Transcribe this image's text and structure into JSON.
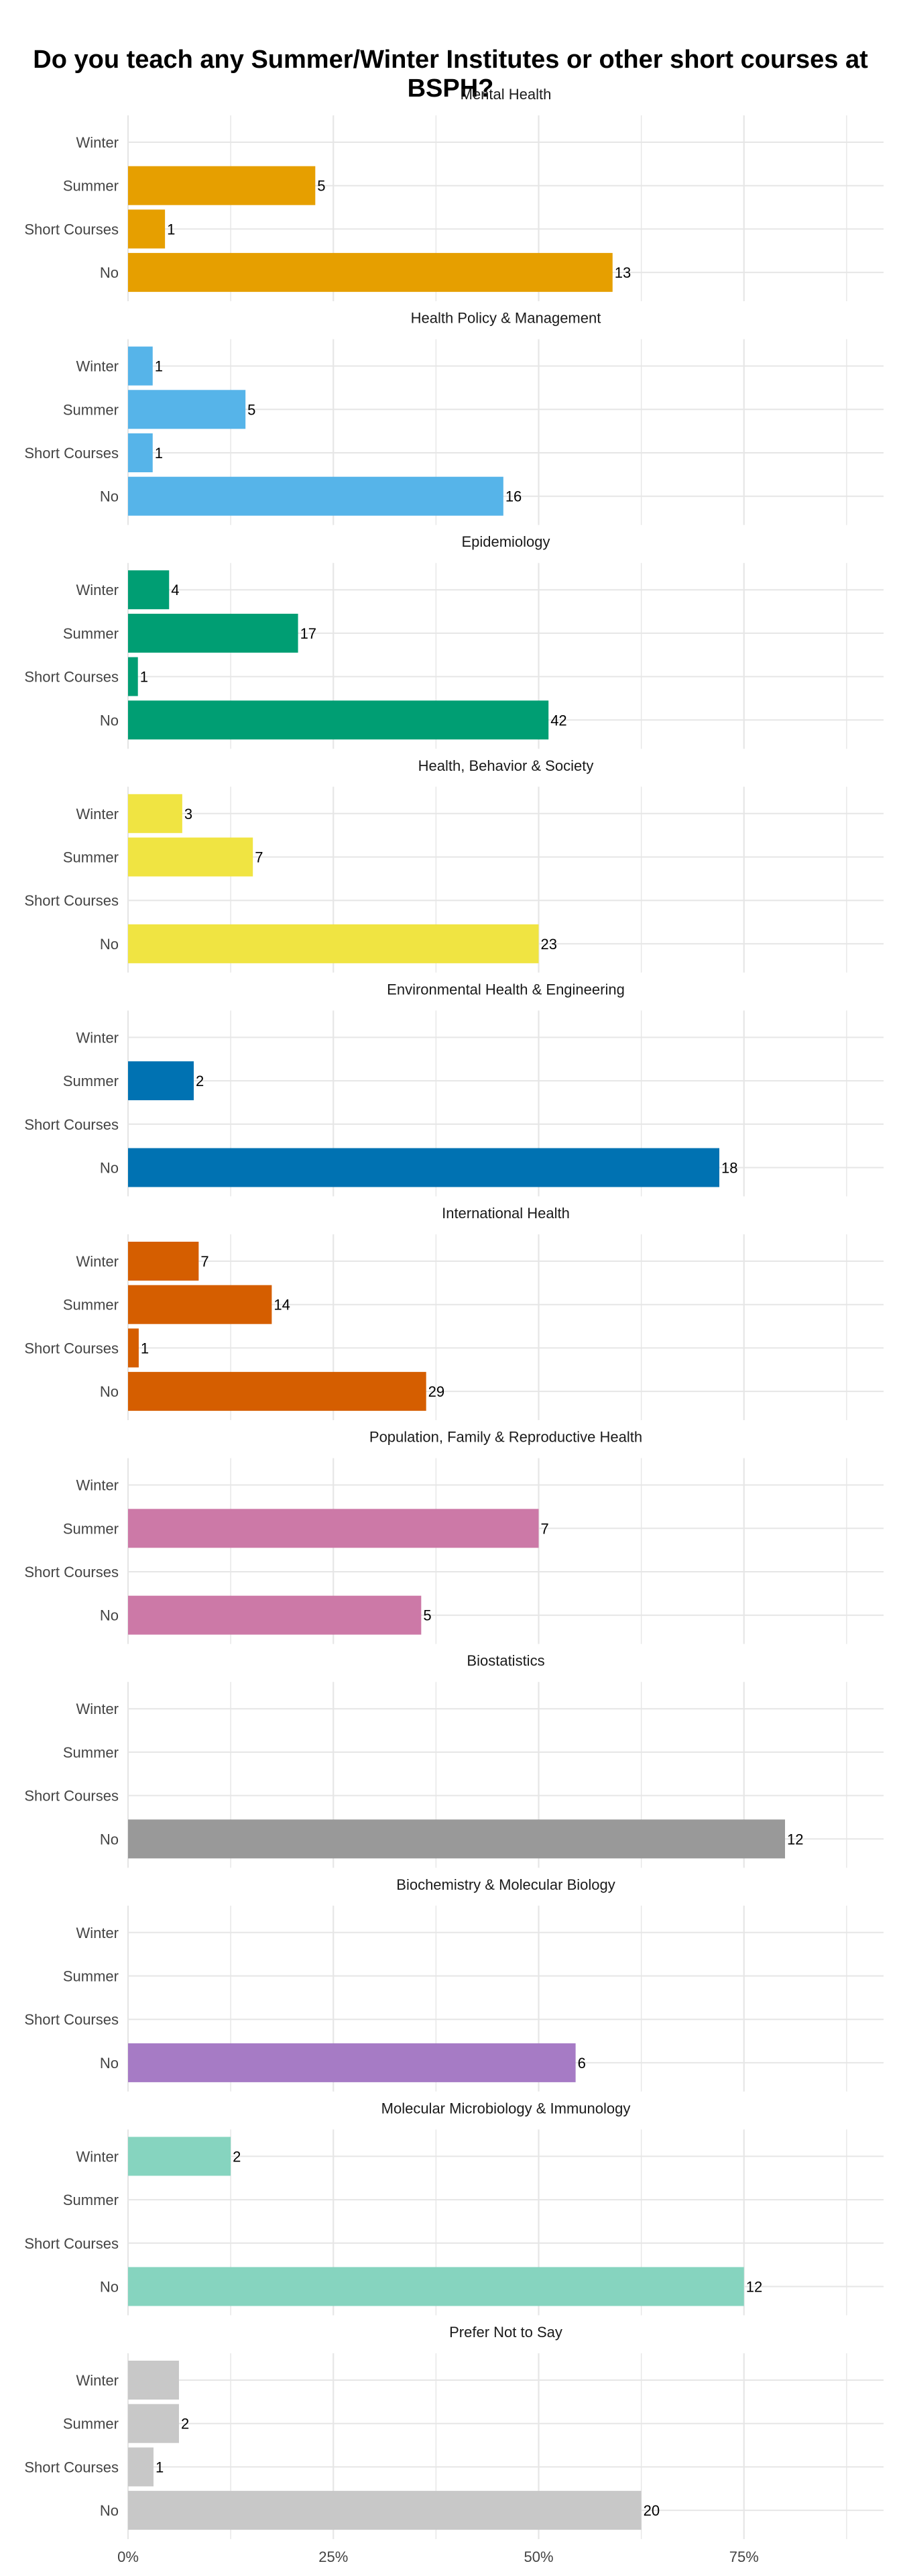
{
  "chart_data": {
    "type": "bar",
    "orientation": "horizontal",
    "title": "Do you teach any Summer/Winter Institutes or other short courses at BSPH?",
    "categories": [
      "Winter",
      "Summer",
      "Short Courses",
      "No"
    ],
    "x_axis": {
      "ticks": [
        0,
        0.25,
        0.5,
        0.75
      ],
      "tick_labels": [
        "0%",
        "25%",
        "50%",
        "75%"
      ],
      "xlim": [
        0,
        0.92
      ]
    },
    "grid": true,
    "panels": [
      {
        "title": "Mental Health",
        "color": "#E69F00",
        "proportions": [
          0,
          0.228,
          0.045,
          0.59
        ],
        "labels": [
          "",
          "5",
          "1",
          "13"
        ]
      },
      {
        "title": "Health Policy & Management",
        "color": "#56B4E9",
        "proportions": [
          0.03,
          0.143,
          0.03,
          0.457
        ],
        "labels": [
          "1",
          "5",
          "1",
          "16"
        ]
      },
      {
        "title": "Epidemiology",
        "color": "#009E73",
        "proportions": [
          0.05,
          0.207,
          0.012,
          0.512
        ],
        "labels": [
          "4",
          "17",
          "1",
          "42"
        ]
      },
      {
        "title": "Health, Behavior & Society",
        "color": "#F0E442",
        "proportions": [
          0.066,
          0.152,
          0,
          0.5
        ],
        "labels": [
          "3",
          "7",
          "",
          "23"
        ]
      },
      {
        "title": "Environmental Health & Engineering",
        "color": "#0072B2",
        "proportions": [
          0,
          0.08,
          0,
          0.72
        ],
        "labels": [
          "",
          "2",
          "",
          "18"
        ]
      },
      {
        "title": "International Health",
        "color": "#D55E00",
        "proportions": [
          0.086,
          0.175,
          0.013,
          0.363
        ],
        "labels": [
          "7",
          "14",
          "1",
          "29"
        ]
      },
      {
        "title": "Population, Family & Reproductive Health",
        "color": "#CC79A7",
        "proportions": [
          0,
          0.5,
          0,
          0.357
        ],
        "labels": [
          "",
          "7",
          "",
          "5"
        ]
      },
      {
        "title": "Biostatistics",
        "color": "#999999",
        "proportions": [
          0,
          0,
          0,
          0.8
        ],
        "labels": [
          "",
          "",
          "",
          "12"
        ]
      },
      {
        "title": "Biochemistry & Molecular Biology",
        "color": "#A67BC5",
        "proportions": [
          0,
          0,
          0,
          0.545
        ],
        "labels": [
          "",
          "",
          "",
          "6"
        ]
      },
      {
        "title": "Molecular Microbiology & Immunology",
        "color": "#86D4BF",
        "proportions": [
          0.125,
          0,
          0,
          0.75
        ],
        "labels": [
          "2",
          "",
          "",
          "12"
        ]
      },
      {
        "title": "Prefer Not to Say",
        "color": "#C8C8C8",
        "proportions": [
          0.062,
          0.062,
          0.031,
          0.625
        ],
        "labels": [
          "",
          "2",
          "1",
          "20"
        ]
      }
    ]
  }
}
